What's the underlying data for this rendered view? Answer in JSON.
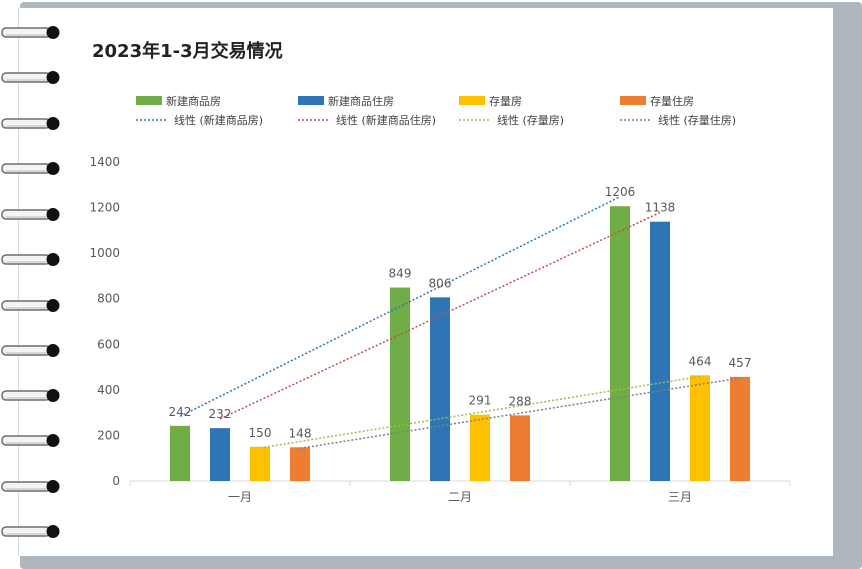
{
  "chart_data": {
    "type": "bar",
    "title": "2023年1-3月交易情况",
    "categories": [
      "一月",
      "二月",
      "三月"
    ],
    "series": [
      {
        "name": "新建商品房",
        "color": "#70ad47",
        "values": [
          242,
          849,
          1206
        ]
      },
      {
        "name": "新建商品住房",
        "color": "#2e75b6",
        "values": [
          232,
          806,
          1138
        ]
      },
      {
        "name": "存量房",
        "color": "#ffc000",
        "values": [
          150,
          291,
          464
        ]
      },
      {
        "name": "存量住房",
        "color": "#ed7d31",
        "values": [
          148,
          288,
          457
        ]
      }
    ],
    "trendlines": [
      {
        "name": "线性 (新建商品房)",
        "color": "#2e75b6"
      },
      {
        "name": "线性 (新建商品住房)",
        "color": "#c0504d"
      },
      {
        "name": "线性 (存量房)",
        "color": "#9bbb59"
      },
      {
        "name": "线性 (存量住房)",
        "color": "#7f7f7f"
      }
    ],
    "ylim": [
      0,
      1400
    ],
    "yticks": [
      "0",
      "200",
      "400",
      "600",
      "800",
      "1000",
      "1200",
      "1400"
    ],
    "grid": false,
    "legend": "top"
  }
}
